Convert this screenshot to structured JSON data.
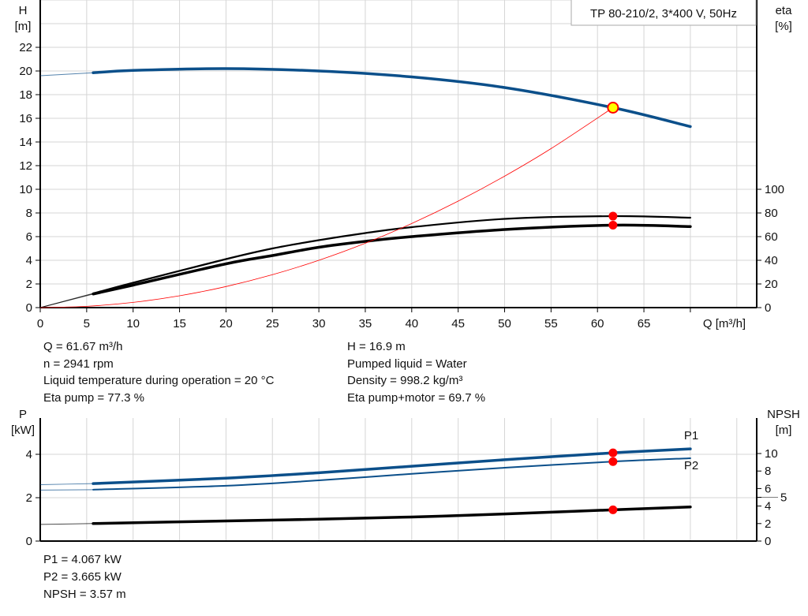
{
  "chart_data": [
    {
      "type": "line",
      "title": "TP 80-210/2, 3*400 V, 50Hz",
      "xlabel": "Q [m³/h]",
      "ylabel_left": [
        "H",
        "[m]"
      ],
      "ylabel_right": [
        "eta",
        "[%]"
      ],
      "xlim": [
        0,
        77
      ],
      "ylim_left": [
        0,
        26
      ],
      "ylim_right": [
        0,
        173
      ],
      "x_ticks": [
        0,
        5,
        10,
        15,
        20,
        25,
        30,
        35,
        40,
        45,
        50,
        55,
        60,
        65
      ],
      "y_ticks_left": [
        0,
        2,
        4,
        6,
        8,
        10,
        12,
        14,
        16,
        18,
        20,
        22
      ],
      "y_ticks_right": [
        0,
        20,
        40,
        60,
        80,
        100
      ],
      "grid": true,
      "series": [
        {
          "axis": "left",
          "color": "#0b4f8a",
          "x": [
            5.7,
            10,
            20,
            30,
            40,
            50,
            61.67,
            70
          ],
          "y": [
            19.85,
            20.05,
            20.2,
            20.0,
            19.5,
            18.6,
            16.9,
            15.3
          ],
          "extension": {
            "x": [
              0,
              5.7
            ],
            "y": [
              19.6,
              19.85
            ]
          }
        },
        {
          "axis": "right",
          "color": "#000000",
          "x": [
            5.7,
            10,
            20,
            25,
            30,
            35,
            40,
            50,
            61.67,
            70
          ],
          "y": [
            12,
            21,
            41,
            50,
            57,
            63,
            68,
            75,
            77.3,
            76
          ],
          "extension": {
            "x": [
              0,
              5.7
            ],
            "y": [
              0,
              12
            ]
          }
        },
        {
          "axis": "right",
          "color": "#000000",
          "x": [
            5.7,
            10,
            20,
            25,
            30,
            35,
            40,
            50,
            61.67,
            70
          ],
          "y": [
            11.5,
            19,
            37,
            44,
            51,
            56,
            60,
            66,
            69.7,
            68.5
          ],
          "extension": {
            "x": [
              0,
              5.7
            ],
            "y": [
              0,
              11.5
            ]
          }
        },
        {
          "axis": "left",
          "color": "#ff0000",
          "type": "system-curve",
          "x": [
            0,
            5,
            10,
            15,
            20,
            25,
            30,
            35,
            40,
            45,
            50,
            55,
            61.67
          ],
          "y": [
            0,
            0.11,
            0.44,
            1.0,
            1.78,
            2.78,
            4.0,
            5.44,
            7.11,
            9.0,
            11.11,
            13.44,
            16.9
          ]
        }
      ],
      "operating_points": [
        {
          "axis": "left",
          "x": 61.67,
          "y": 16.9,
          "color": "#ffff00"
        },
        {
          "axis": "right",
          "x": 61.67,
          "y": 77.3,
          "color": "#ff0000"
        },
        {
          "axis": "right",
          "x": 61.67,
          "y": 69.7,
          "color": "#ff0000"
        }
      ]
    },
    {
      "type": "line",
      "ylabel_left": [
        "P",
        "[kW]"
      ],
      "ylabel_right": [
        "NPSH",
        "[m]"
      ],
      "xlim": [
        0,
        77
      ],
      "ylim_left": [
        0,
        5.7
      ],
      "ylim_right": [
        0,
        14
      ],
      "y_ticks_left": [
        0,
        2,
        4
      ],
      "y_ticks_right": [
        0,
        2,
        4,
        5,
        6,
        8,
        10
      ],
      "grid": true,
      "series": [
        {
          "name": "P1",
          "axis": "left",
          "color": "#0b4f8a",
          "x": [
            5.7,
            20,
            30,
            40,
            50,
            61.67,
            70
          ],
          "y": [
            2.65,
            2.9,
            3.15,
            3.45,
            3.75,
            4.067,
            4.25
          ],
          "extension": {
            "x": [
              0,
              5.7
            ],
            "y": [
              2.6,
              2.65
            ]
          }
        },
        {
          "name": "P2",
          "axis": "left",
          "color": "#0b4f8a",
          "x": [
            5.7,
            20,
            30,
            40,
            50,
            61.67,
            70
          ],
          "y": [
            2.37,
            2.55,
            2.8,
            3.1,
            3.38,
            3.665,
            3.82
          ],
          "extension": {
            "x": [
              0,
              5.7
            ],
            "y": [
              2.35,
              2.37
            ]
          }
        },
        {
          "axis": "right",
          "color": "#000000",
          "x": [
            5.7,
            20,
            30,
            40,
            50,
            61.67,
            70
          ],
          "y": [
            2.0,
            2.3,
            2.5,
            2.75,
            3.1,
            3.57,
            3.9
          ],
          "extension": {
            "x": [
              0,
              5.7
            ],
            "y": [
              1.9,
              2.0
            ]
          }
        }
      ],
      "operating_points": [
        {
          "axis": "left",
          "x": 61.67,
          "y": 4.067,
          "color": "#ff0000"
        },
        {
          "axis": "left",
          "x": 61.67,
          "y": 3.665,
          "color": "#ff0000"
        },
        {
          "axis": "right",
          "x": 61.67,
          "y": 3.57,
          "color": "#ff0000"
        }
      ]
    }
  ],
  "info": {
    "left": [
      "Q = 61.67 m³/h",
      "n = 2941 rpm",
      "Liquid temperature during operation = 20 °C",
      "Eta pump = 77.3 %"
    ],
    "right": [
      "H = 16.9 m",
      "Pumped liquid = Water",
      "Density = 998.2 kg/m³",
      "Eta pump+motor = 69.7 %"
    ],
    "bottom": [
      "P1 = 4.067 kW",
      "P2 = 3.665 kW",
      "NPSH = 3.57 m"
    ]
  }
}
